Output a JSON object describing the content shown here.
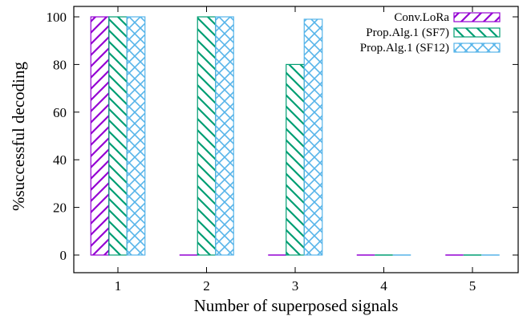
{
  "chart_data": {
    "type": "bar",
    "xlabel": "Number of superposed signals",
    "ylabel": "%successful decoding",
    "categories": [
      "1",
      "2",
      "3",
      "4",
      "5"
    ],
    "ylim": [
      0,
      100
    ],
    "yticks": [
      "0",
      "20",
      "40",
      "60",
      "80",
      "100"
    ],
    "grid": false,
    "legend_position": "top-right",
    "series": [
      {
        "name": "Conv.LoRa",
        "values": [
          100,
          0,
          0,
          0,
          0
        ],
        "color": "#9400d3",
        "pattern": "diag-up"
      },
      {
        "name": "Prop.Alg.1 (SF7)",
        "values": [
          100,
          100,
          80,
          0,
          0
        ],
        "color": "#009e73",
        "pattern": "diag-down"
      },
      {
        "name": "Prop.Alg.1 (SF12)",
        "values": [
          100,
          100,
          99,
          0,
          0
        ],
        "color": "#56b4e9",
        "pattern": "cross"
      }
    ]
  }
}
